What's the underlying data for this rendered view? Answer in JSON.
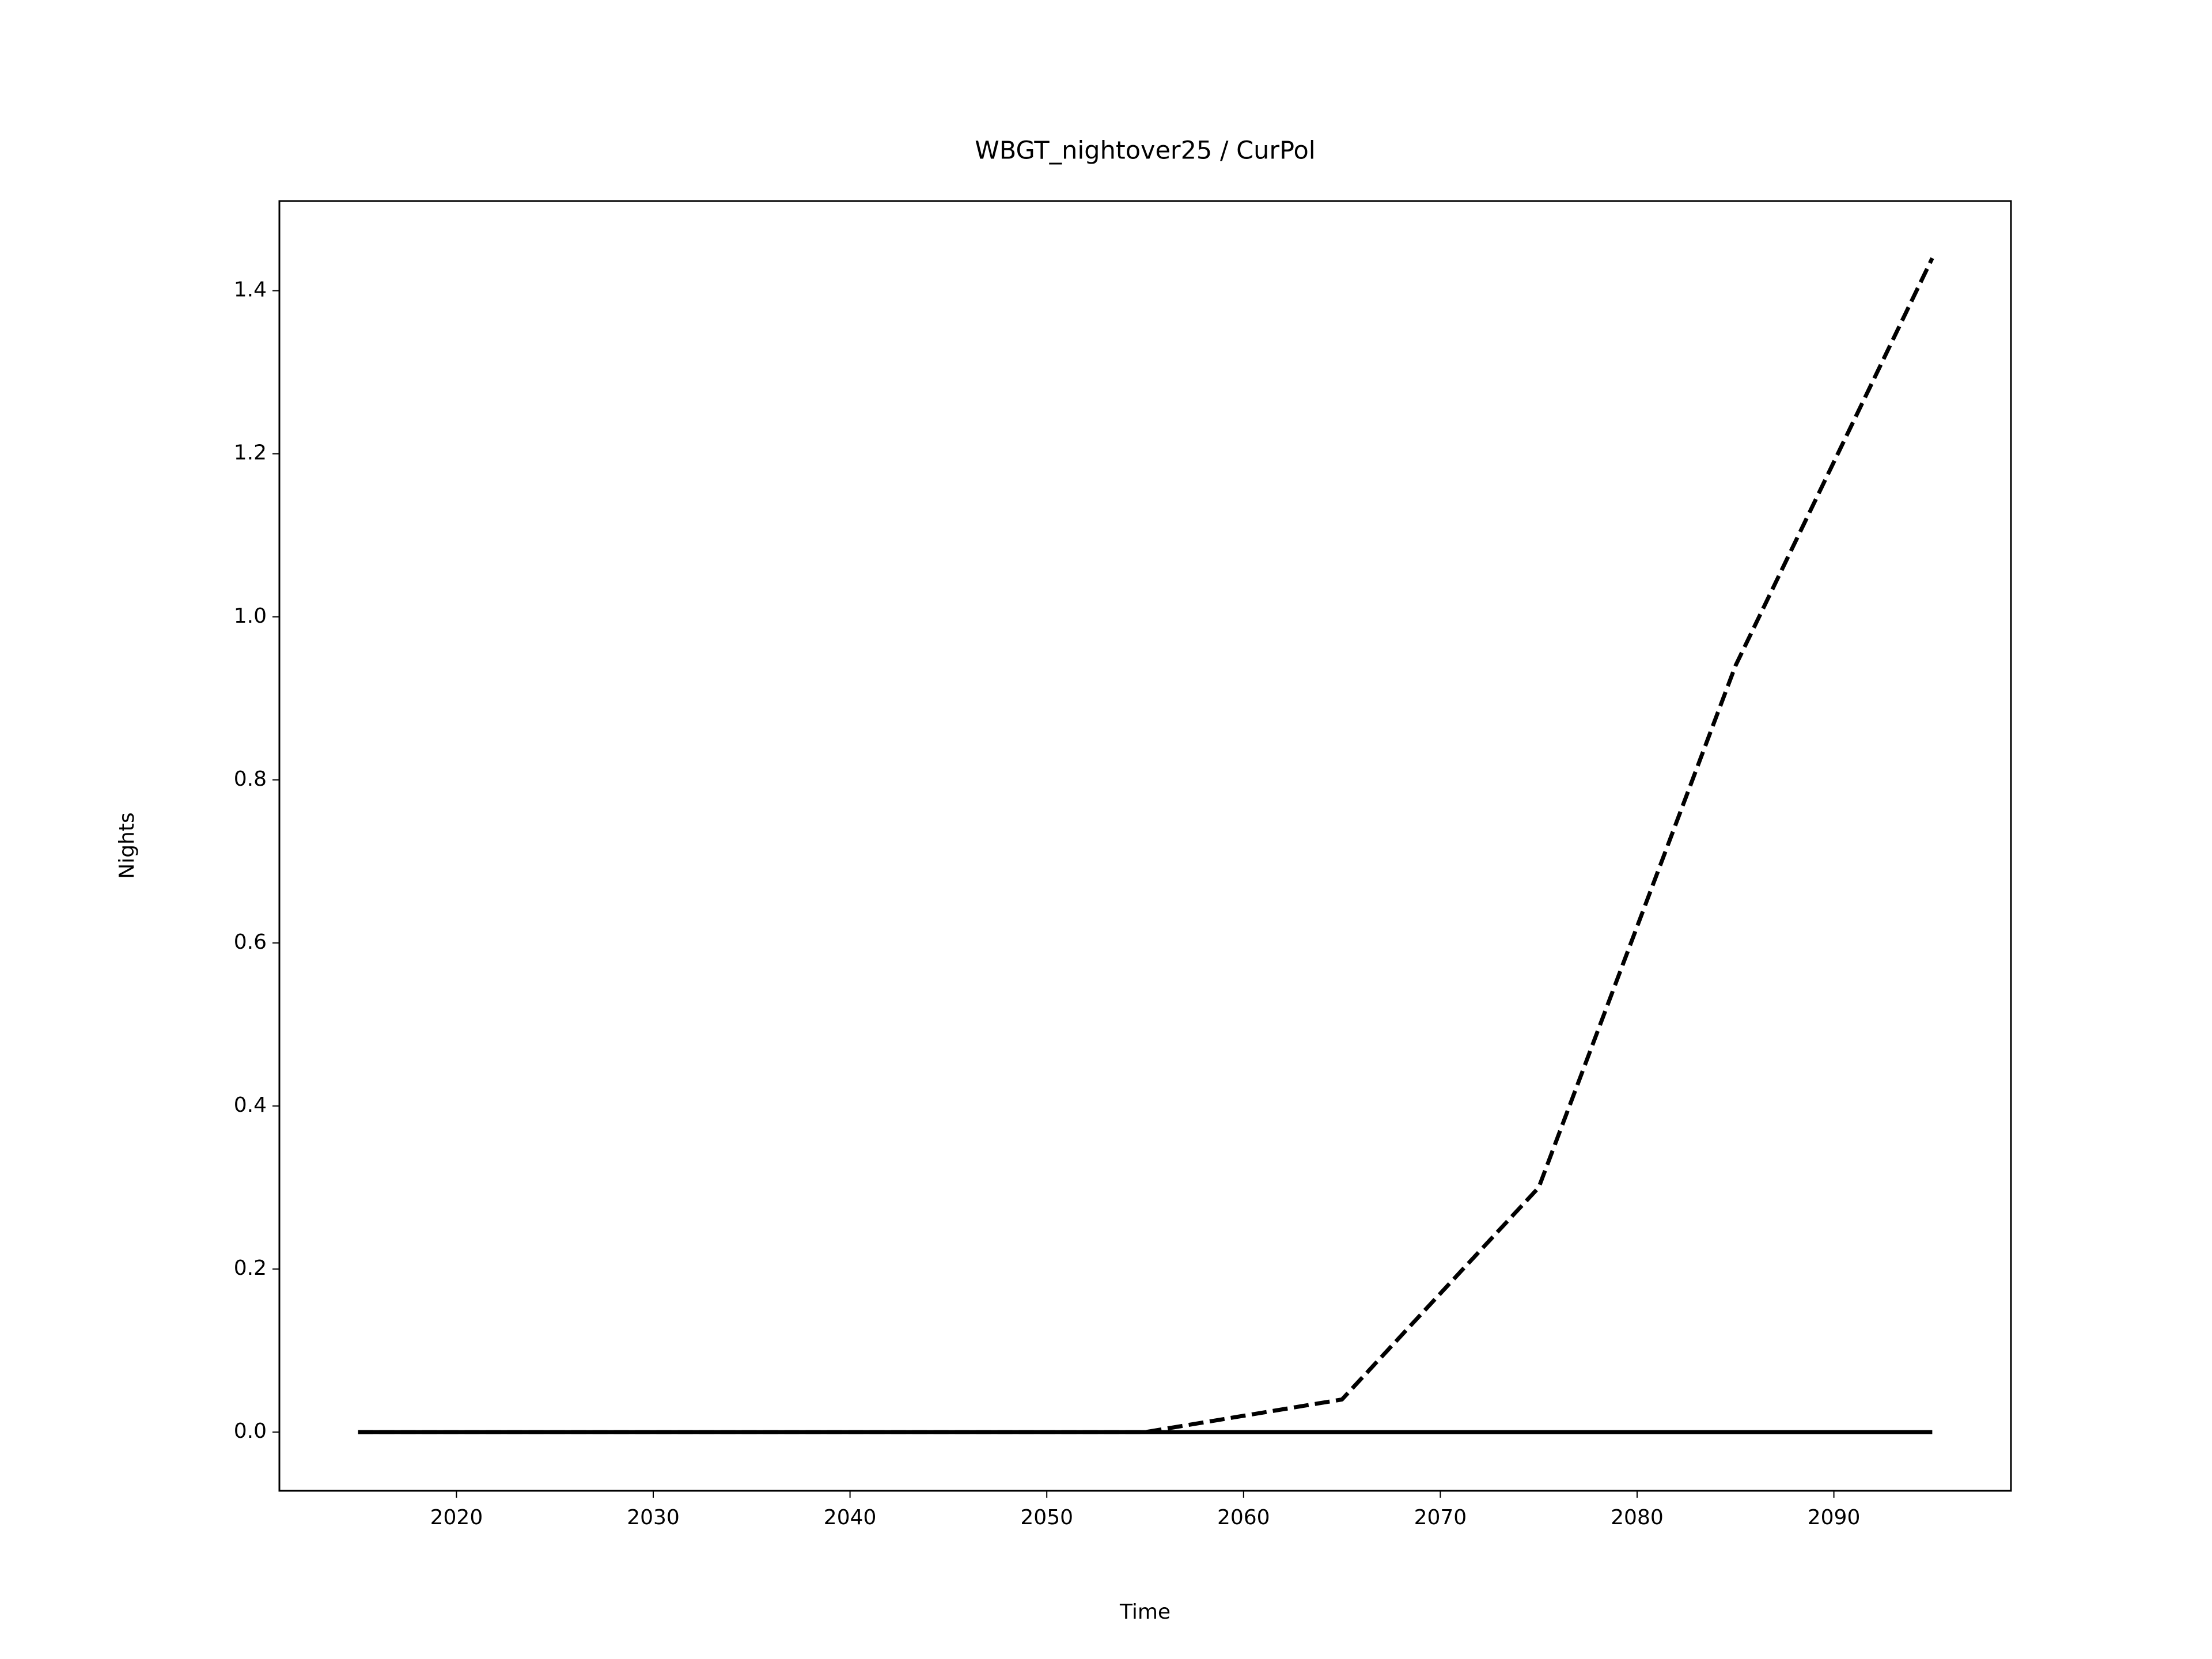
{
  "chart_data": {
    "type": "line",
    "title": "WBGT_nightover25 / CurPol",
    "x_label": "Time",
    "y_label": "Nights",
    "x": [
      2015,
      2025,
      2035,
      2045,
      2055,
      2065,
      2075,
      2085,
      2095
    ],
    "series": [
      {
        "color": "#000000",
        "line_style": "solid",
        "values": [
          0,
          0,
          0,
          0,
          0,
          0,
          0,
          0,
          0
        ]
      },
      {
        "color": "#000000",
        "line_style": "dashed",
        "values": [
          0,
          0,
          0,
          0,
          0,
          0.04,
          0.3,
          0.94,
          1.44
        ]
      }
    ],
    "xlim": [
      2011,
      2099
    ],
    "ylim": [
      -0.072,
      1.51
    ],
    "xticks": [
      2020,
      2030,
      2040,
      2050,
      2060,
      2070,
      2080,
      2090
    ],
    "yticks": [
      {
        "value": 0,
        "label": "0.0"
      },
      {
        "value": 0.2,
        "label": "0.2"
      },
      {
        "value": 0.4,
        "label": "0.4"
      },
      {
        "value": 0.6,
        "label": "0.6"
      },
      {
        "value": 0.8,
        "label": "0.8"
      },
      {
        "value": 1,
        "label": "1.0"
      },
      {
        "value": 1.2,
        "label": "1.2"
      },
      {
        "value": 1.4,
        "label": "1.4"
      }
    ],
    "grid": false
  }
}
